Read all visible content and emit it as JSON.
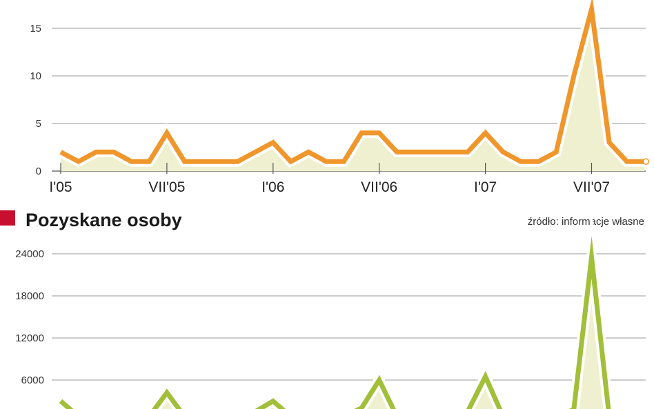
{
  "chart_data": [
    {
      "type": "line",
      "title": "",
      "xlabel": "",
      "ylabel": "",
      "ylim": [
        0,
        17
      ],
      "yticks": [
        0,
        5,
        10,
        15
      ],
      "grid": true,
      "x_tick_labels": [
        {
          "label": "I'05",
          "index": 0
        },
        {
          "label": "VII'05",
          "index": 6
        },
        {
          "label": "I'06",
          "index": 12
        },
        {
          "label": "VII'06",
          "index": 18
        },
        {
          "label": "I'07",
          "index": 24
        },
        {
          "label": "VII'07",
          "index": 30
        }
      ],
      "series": [
        {
          "color": "#f0962b",
          "values": [
            2,
            1,
            2,
            2,
            1,
            1,
            4,
            1,
            1,
            1,
            1,
            2,
            3,
            1,
            2,
            1,
            1,
            4,
            4,
            2,
            2,
            2,
            2,
            2,
            4,
            2,
            1,
            1,
            2,
            10,
            17,
            3,
            1,
            1
          ]
        }
      ]
    },
    {
      "type": "line",
      "title": "Pozyskane osoby",
      "source": "źródło: informacje własne",
      "xlabel": "",
      "ylabel": "",
      "ylim": [
        0,
        24000
      ],
      "yticks": [
        6000,
        12000,
        18000,
        24000
      ],
      "grid": true,
      "series": [
        {
          "color": "#a2bf3a",
          "values": [
            3000,
            800,
            800,
            800,
            800,
            800,
            4200,
            800,
            800,
            800,
            800,
            1500,
            3000,
            800,
            800,
            800,
            800,
            2000,
            6000,
            800,
            800,
            800,
            800,
            1500,
            6500,
            800,
            800,
            800,
            800,
            1800,
            23500,
            800,
            800,
            800
          ]
        }
      ]
    }
  ],
  "heading": {
    "marker_color": "#c8102e",
    "text": "Pozyskane osoby",
    "source": "źródło: informacje własne"
  }
}
